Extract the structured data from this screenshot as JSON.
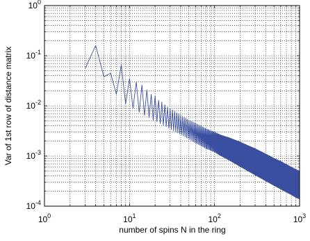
{
  "chart_data": {
    "type": "line",
    "xlabel": "number of spins N in the ring",
    "ylabel": "Var of 1st row of distance matrix",
    "xscale": "log",
    "yscale": "log",
    "xlim": [
      1,
      1000
    ],
    "ylim": [
      0.0001,
      1
    ],
    "grid": true,
    "line_color": "#3b4fa0",
    "x_ticks": [
      {
        "value": 1,
        "base": "10",
        "exp": "0"
      },
      {
        "value": 10,
        "base": "10",
        "exp": "1"
      },
      {
        "value": 100,
        "base": "10",
        "exp": "2"
      },
      {
        "value": 1000,
        "base": "10",
        "exp": "3"
      }
    ],
    "y_ticks": [
      {
        "value": 0.0001,
        "base": "10",
        "exp": "-4"
      },
      {
        "value": 0.001,
        "base": "10",
        "exp": "-3"
      },
      {
        "value": 0.01,
        "base": "10",
        "exp": "-2"
      },
      {
        "value": 0.1,
        "base": "10",
        "exp": "-1"
      },
      {
        "value": 1,
        "base": "10",
        "exp": "0"
      }
    ],
    "series": [
      {
        "x": [
          3,
          4,
          5,
          6,
          7,
          8,
          9,
          10,
          11,
          12,
          13,
          14,
          15,
          16,
          17,
          18,
          19,
          20,
          22,
          24,
          26,
          28,
          30,
          35,
          40,
          45,
          50,
          60,
          70,
          80,
          90,
          100,
          120,
          150,
          200,
          250,
          300,
          400,
          500,
          600,
          700,
          800,
          900,
          1000
        ],
        "upper": [
          0.055,
          0.16,
          0.038,
          0.045,
          0.032,
          0.065,
          0.028,
          0.035,
          0.024,
          0.03,
          0.018,
          0.026,
          0.016,
          0.021,
          0.014,
          0.017,
          0.013,
          0.016,
          0.013,
          0.012,
          0.0105,
          0.0095,
          0.009,
          0.0075,
          0.0065,
          0.0058,
          0.0052,
          0.0045,
          0.0039,
          0.0035,
          0.0032,
          0.003,
          0.0026,
          0.0023,
          0.0019,
          0.0016,
          0.0014,
          0.0011,
          0.0009,
          0.00078,
          0.00068,
          0.0006,
          0.00054,
          0.0005
        ],
        "lower": [
          0.055,
          0.16,
          0.038,
          0.04,
          0.017,
          0.018,
          0.011,
          0.012,
          0.009,
          0.008,
          0.0075,
          0.007,
          0.0065,
          0.006,
          0.0058,
          0.0055,
          0.0052,
          0.005,
          0.0047,
          0.0042,
          0.004,
          0.0037,
          0.0035,
          0.003,
          0.0027,
          0.0024,
          0.0022,
          0.0018,
          0.0016,
          0.0014,
          0.0013,
          0.0012,
          0.001,
          0.00082,
          0.00062,
          0.0005,
          0.00042,
          0.00032,
          0.00026,
          0.00022,
          0.00019,
          0.00017,
          0.00015,
          0.00014
        ]
      }
    ]
  }
}
